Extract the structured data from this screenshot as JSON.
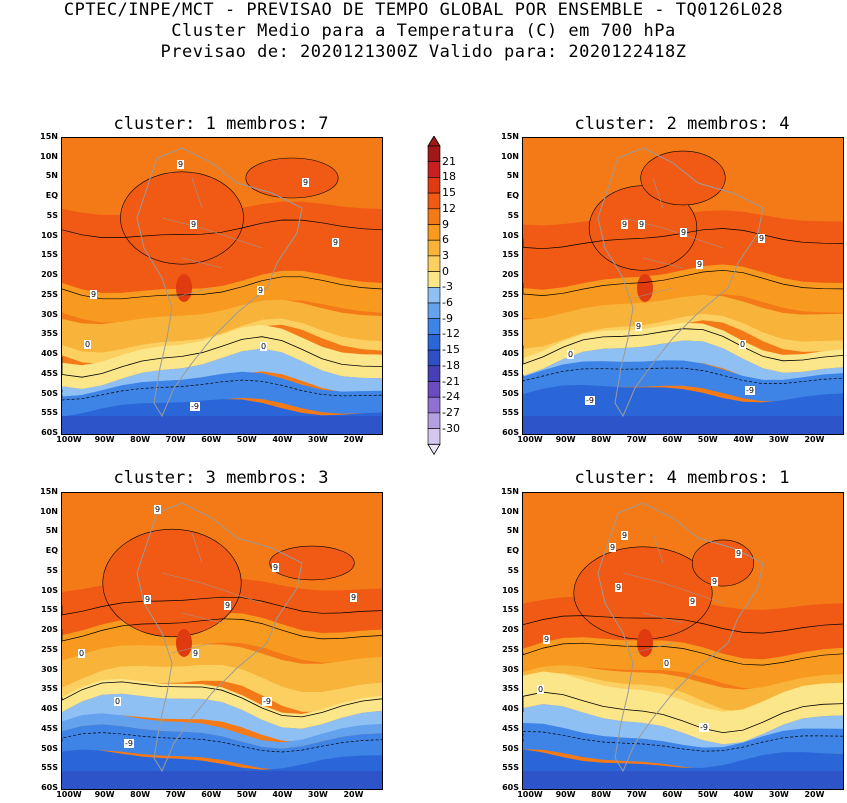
{
  "title": {
    "line1": "CPTEC/INPE/MCT - PREVISAO DE TEMPO GLOBAL POR ENSEMBLE - TQ0126L028",
    "line2": "Cluster Medio para a Temperatura (C) em 700 hPa",
    "line3": "Previsao de: 2020121300Z   Valido para: 2020122418Z"
  },
  "panels": [
    {
      "title": "cluster: 1   membros: 7",
      "contour_labels": [
        "9",
        "9",
        "9",
        "9",
        "9",
        "9",
        "0",
        "0",
        "-9"
      ]
    },
    {
      "title": "cluster: 2   membros: 4",
      "contour_labels": [
        "9",
        "9",
        "9",
        "9",
        "9",
        "9",
        "0",
        "0",
        "-9",
        "-9"
      ]
    },
    {
      "title": "cluster: 3   membros: 3",
      "contour_labels": [
        "9",
        "9",
        "9",
        "9",
        "9",
        "9",
        "0",
        "0",
        "-9",
        "-9"
      ]
    },
    {
      "title": "cluster: 4   membros: 1",
      "contour_labels": [
        "9",
        "9",
        "9",
        "9",
        "9",
        "9",
        "9",
        "0",
        "0",
        "-9"
      ]
    }
  ],
  "lat_ticks": [
    "15N",
    "10N",
    "5N",
    "EQ",
    "5S",
    "10S",
    "15S",
    "20S",
    "25S",
    "30S",
    "35S",
    "40S",
    "45S",
    "50S",
    "55S",
    "60S"
  ],
  "lon_ticks": [
    "100W",
    "90W",
    "80W",
    "70W",
    "60W",
    "50W",
    "40W",
    "30W",
    "20W"
  ],
  "colorbar": {
    "labels": [
      "21",
      "18",
      "15",
      "12",
      "9",
      "6",
      "3",
      "0",
      "-3",
      "-6",
      "-9",
      "-12",
      "-15",
      "-18",
      "-21",
      "-24",
      "-27",
      "-30"
    ],
    "colors": [
      "#a01818",
      "#c82020",
      "#e03a10",
      "#f05a14",
      "#f47a18",
      "#f89a20",
      "#f8b43a",
      "#fcd060",
      "#fce68a",
      "#8ec0f4",
      "#64a2ee",
      "#3e84e6",
      "#2a66d8",
      "#2e50c6",
      "#4640b4",
      "#6a4cc0",
      "#9070d0",
      "#b4a0e0",
      "#d4c8ee"
    ]
  },
  "chart_data": {
    "type": "heatmap",
    "variable": "Temperatura (C) em 700 hPa",
    "lat_range": [
      "15N",
      "60S"
    ],
    "lon_range": [
      "100W",
      "10W"
    ],
    "contour_interval": 9,
    "contour_levels_labeled": [
      9,
      0,
      -9
    ],
    "color_scale": [
      -30,
      -27,
      -24,
      -21,
      -18,
      -15,
      -12,
      -9,
      -6,
      -3,
      0,
      3,
      6,
      9,
      12,
      15,
      18,
      21
    ],
    "panels": [
      {
        "cluster": 1,
        "membros": 7
      },
      {
        "cluster": 2,
        "membros": 4
      },
      {
        "cluster": 3,
        "membros": 3
      },
      {
        "cluster": 4,
        "membros": 1
      }
    ]
  }
}
